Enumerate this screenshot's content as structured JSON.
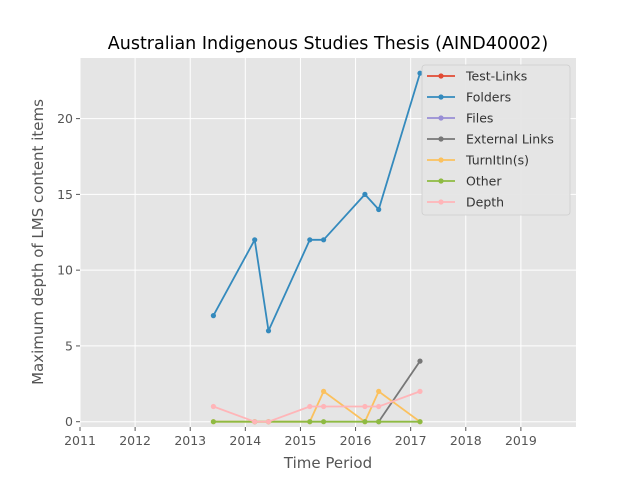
{
  "chart_data": {
    "type": "line",
    "title": "Australian Indigenous Studies Thesis (AIND40002)",
    "xlabel": "Time Period",
    "ylabel": "Maximum depth of LMS content items",
    "xlim": [
      2011.0,
      2020.0
    ],
    "ylim": [
      -0.35,
      24.0
    ],
    "x_ticks": [
      2011,
      2012,
      2013,
      2014,
      2015,
      2016,
      2017,
      2018,
      2019
    ],
    "y_ticks": [
      0,
      5,
      10,
      15,
      20
    ],
    "grid": true,
    "legend_position": "top-right",
    "x": [
      2013.42,
      2014.17,
      2014.42,
      2015.17,
      2015.42,
      2016.17,
      2016.42,
      2017.17
    ],
    "series": [
      {
        "name": "Test-Links",
        "color": "#E24A33",
        "values": [
          null,
          null,
          null,
          null,
          null,
          null,
          null,
          null
        ]
      },
      {
        "name": "Folders",
        "color": "#348ABD",
        "values": [
          7,
          12,
          6,
          12,
          12,
          15,
          14,
          23
        ]
      },
      {
        "name": "Files",
        "color": "#988ED5",
        "values": [
          null,
          null,
          null,
          null,
          null,
          null,
          null,
          null
        ]
      },
      {
        "name": "External Links",
        "color": "#777777",
        "values": [
          null,
          null,
          null,
          null,
          null,
          null,
          0,
          4
        ]
      },
      {
        "name": "TurnItIn(s)",
        "color": "#FBC15E",
        "values": [
          0,
          0,
          0,
          0,
          2,
          0,
          2,
          0
        ]
      },
      {
        "name": "Other",
        "color": "#8EBA42",
        "values": [
          0,
          0,
          0,
          0,
          0,
          0,
          0,
          0
        ]
      },
      {
        "name": "Depth",
        "color": "#FFB5B8",
        "values": [
          1,
          0,
          0,
          1,
          1,
          1,
          1,
          2
        ]
      }
    ]
  }
}
